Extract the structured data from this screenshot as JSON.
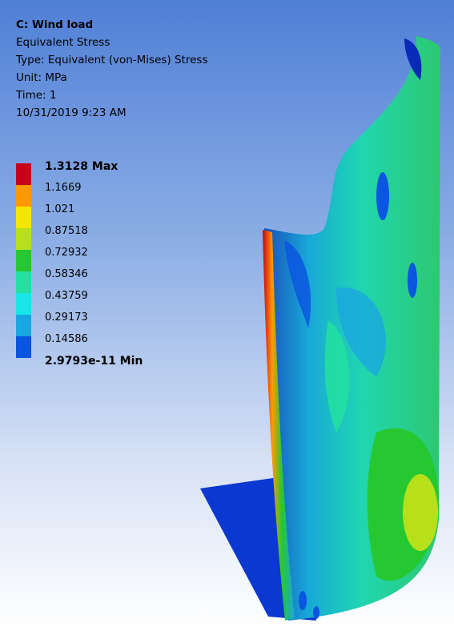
{
  "header": {
    "title": "C: Wind load",
    "result_name": "Equivalent Stress",
    "type": "Type: Equivalent (von-Mises) Stress",
    "unit": "Unit: MPa",
    "time": "Time: 1",
    "timestamp": "10/31/2019 9:23 AM"
  },
  "legend": {
    "entries": [
      {
        "label": "1.3128 Max",
        "color": "#c8001a",
        "bold": true
      },
      {
        "label": "1.1669",
        "color": "#ff9900"
      },
      {
        "label": "1.021",
        "color": "#f5e600"
      },
      {
        "label": "0.87518",
        "color": "#b7e01a"
      },
      {
        "label": "0.72932",
        "color": "#26c832"
      },
      {
        "label": "0.58346",
        "color": "#22e0a0"
      },
      {
        "label": "0.43759",
        "color": "#18e6e6"
      },
      {
        "label": "0.29173",
        "color": "#1aa6e0"
      },
      {
        "label": "0.14586",
        "color": "#0a56e0"
      },
      {
        "label": "2.9793e-11 Min",
        "color": "#0000d0",
        "bold": true
      }
    ]
  }
}
